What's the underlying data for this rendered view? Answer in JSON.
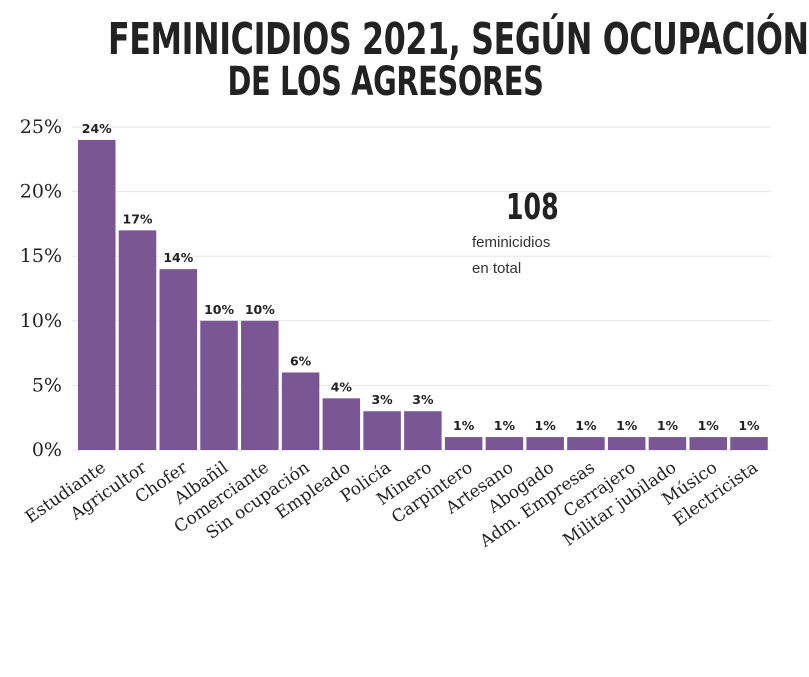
{
  "chart_data": {
    "type": "bar",
    "title_line1": "FEMINICIDIOS 2021, SEGÚN OCUPACIÓN",
    "title_line2": "DE LOS AGRESORES",
    "total_number": "108",
    "total_label_line1": "feminicidios",
    "total_label_line2": "en total",
    "categories": [
      "Estudiante",
      "Agricultor",
      "Chofer",
      "Albañil",
      "Comerciante",
      "Sin ocupación",
      "Empleado",
      "Policía",
      "Minero",
      "Carpintero",
      "Artesano",
      "Abogado",
      "Adm. Empresas",
      "Cerrajero",
      "Militar jubilado",
      "Músico",
      "Electricista"
    ],
    "values": [
      24,
      17,
      14,
      10,
      10,
      6,
      4,
      3,
      3,
      1,
      1,
      1,
      1,
      1,
      1,
      1,
      1
    ],
    "data_labels": [
      "24%",
      "17%",
      "14%",
      "10%",
      "10%",
      "6%",
      "4%",
      "3%",
      "3%",
      "1%",
      "1%",
      "1%",
      "1%",
      "1%",
      "1%",
      "1%",
      "1%"
    ],
    "y_ticks": [
      0,
      5,
      10,
      15,
      20,
      25
    ],
    "y_tick_labels": [
      "0%",
      "5%",
      "10%",
      "15%",
      "20%",
      "25%"
    ],
    "ylim": [
      0,
      25
    ],
    "grid": true,
    "bar_color": "#7a5694",
    "grid_color": "#e6e6e6"
  }
}
